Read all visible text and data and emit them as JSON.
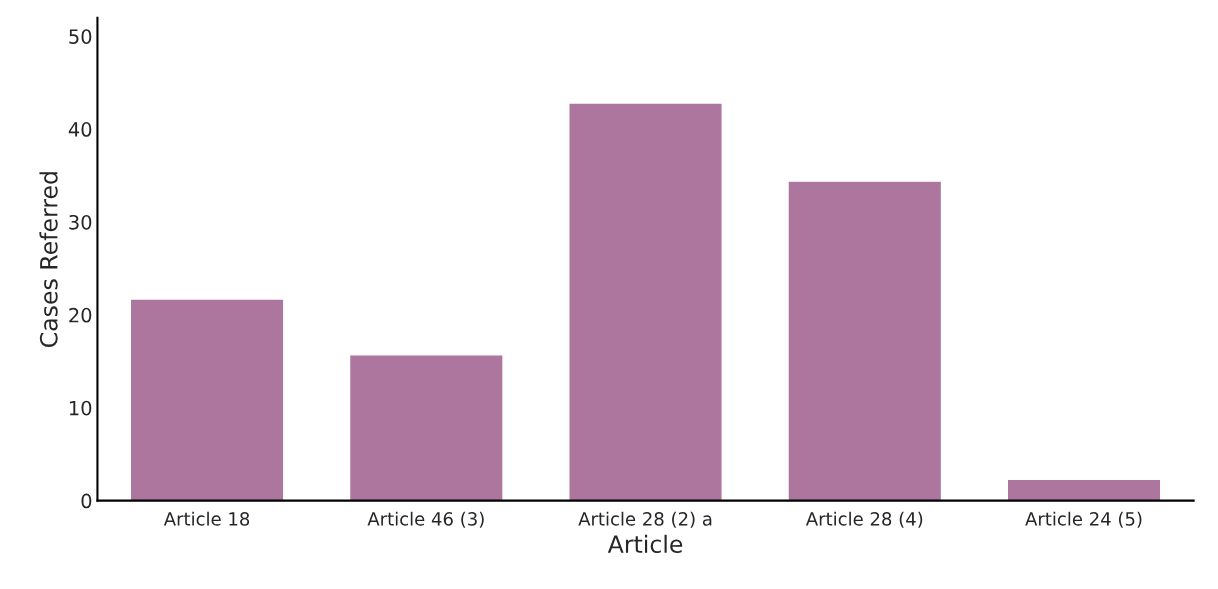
{
  "chart_data": {
    "type": "bar",
    "xlabel": "Article",
    "ylabel": "Cases Referred",
    "categories": [
      "Article 18",
      "Article 46 (3)",
      "Article 28 (2) a",
      "Article 28 (4)",
      "Article 24 (5)"
    ],
    "values": [
      21.7,
      15.7,
      42.8,
      34.4,
      2.3
    ],
    "color": "#ad769e",
    "ylim": [
      0,
      52
    ],
    "yticks": [
      0,
      10,
      20,
      30,
      40,
      50
    ],
    "grid": false
  }
}
